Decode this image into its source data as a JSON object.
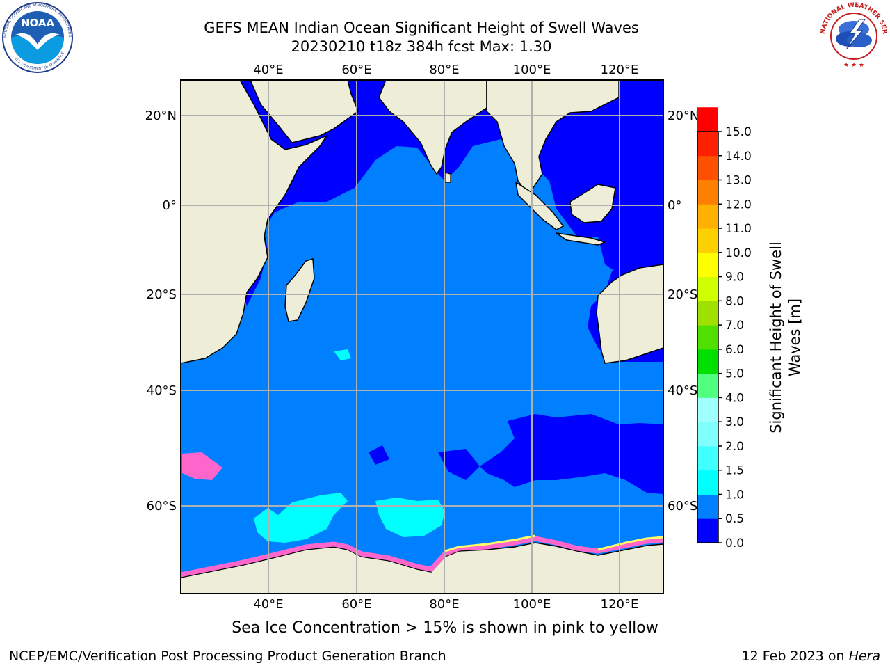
{
  "header": {
    "title_line1": "GEFS MEAN Indian Ocean Significant Height of Swell Waves",
    "title_line2": "20230210 t18z 384h fcst   Max: 1.30"
  },
  "logos": {
    "left": {
      "name": "NOAA",
      "ring_text": "NATIONAL OCEANIC AND ATMOSPHERIC ADMINISTRATION",
      "bottom_text": "U.S. DEPARTMENT OF COMMERCE"
    },
    "right": {
      "ring_text": "NATIONAL WEATHER SERVICE"
    }
  },
  "map": {
    "lon_labels": [
      "40°E",
      "60°E",
      "80°E",
      "100°E",
      "120°E"
    ],
    "lat_labels": [
      "20°N",
      "0°",
      "20°S",
      "40°S",
      "60°S"
    ],
    "colors": {
      "land": "#eeeed8",
      "ocean_main": "#0080ff",
      "ocean_low": "#0000ff",
      "cyan": "#00ffff",
      "light_cyan": "#80ffff",
      "ice_pink": "#ff66cc",
      "ice_yellow": "#ffff66",
      "grid": "#b0b0b0"
    }
  },
  "colorbar": {
    "label": "Significant Height of Swell Waves [m]",
    "ticks": [
      "15.0",
      "14.0",
      "13.0",
      "12.0",
      "11.0",
      "10.0",
      "9.0",
      "8.0",
      "7.0",
      "6.0",
      "5.0",
      "4.0",
      "3.0",
      "2.0",
      "1.5",
      "1.0",
      "0.5",
      "0.0"
    ],
    "band_colors": [
      "#0000ff",
      "#0080ff",
      "#00ffff",
      "#40ffff",
      "#80ffff",
      "#a0ffff",
      "#50ff80",
      "#00e000",
      "#50e000",
      "#a0e000",
      "#d0ff00",
      "#ffff00",
      "#ffd000",
      "#ffb000",
      "#ff8000",
      "#ff5000",
      "#ff2000",
      "#ff0000"
    ]
  },
  "note": "Sea Ice Concentration > 15% is shown in pink to yellow",
  "footer": {
    "left": "NCEP/EMC/Verification Post Processing Product Generation Branch",
    "right_prefix": "12 Feb 2023 on ",
    "right_italic": "Hera"
  }
}
